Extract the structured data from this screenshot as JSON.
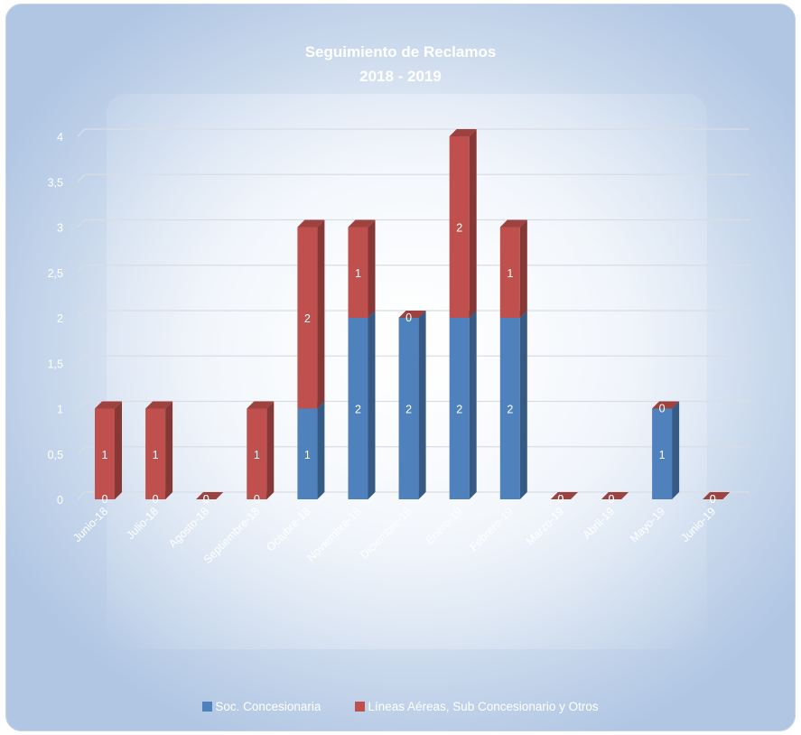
{
  "chart_data": {
    "type": "bar",
    "stacked": true,
    "three_d": true,
    "title": [
      "Seguimiento de Reclamos",
      "2018 - 2019"
    ],
    "categories": [
      "Junio-18",
      "Julio-18",
      "Agosto-18",
      "Septiembre-18",
      "Octubre-18",
      "Noviembre-18",
      "Diciembre-18",
      "Enero-19",
      "Febrero-19",
      "Marzo-19",
      "Abril-19",
      "Mayo-19",
      "Junio-19"
    ],
    "series": [
      {
        "name": "Soc. Concesionaria",
        "color": "#4f81bd",
        "values": [
          0,
          0,
          0,
          0,
          1,
          2,
          2,
          2,
          2,
          0,
          0,
          1,
          0
        ]
      },
      {
        "name": "Líneas Aéreas, Sub Concesionario y Otros",
        "color": "#c0504d",
        "values": [
          1,
          1,
          0,
          1,
          2,
          1,
          0,
          2,
          1,
          0,
          0,
          0,
          0
        ]
      }
    ],
    "y_ticks": [
      "0",
      "0,5",
      "1",
      "1,5",
      "2",
      "2,5",
      "3",
      "3,5",
      "4"
    ],
    "ylim": [
      0,
      4
    ],
    "grid": true,
    "legend_position": "bottom",
    "data_labels": true
  }
}
